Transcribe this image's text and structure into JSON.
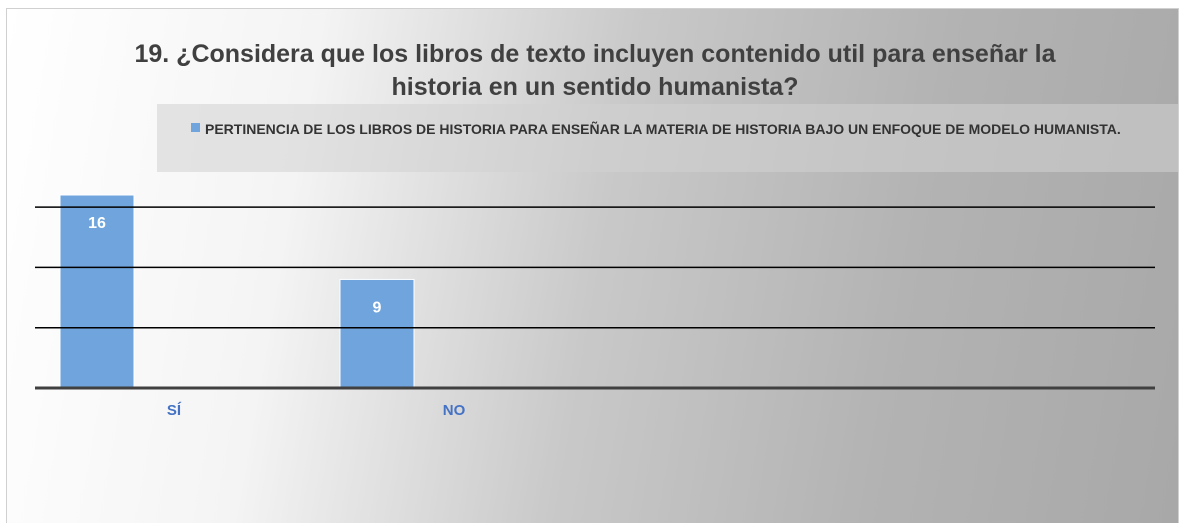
{
  "chart_data": {
    "type": "bar",
    "title": "19. ¿Considera que los libros de texto incluyen contenido util para enseñar la historia en un sentido humanista?",
    "categories": [
      "SÍ",
      "NO"
    ],
    "series": [
      {
        "name": "PERTINENCIA DE LOS LIBROS DE HISTORIA PARA ENSEÑAR LA MATERIA DE HISTORIA BAJO UN ENFOQUE DE MODELO HUMANISTA.",
        "color": "#6fa5dc",
        "values": [
          16,
          9
        ]
      }
    ],
    "ylim": [
      0,
      16
    ],
    "yticks": [
      0,
      5,
      10,
      15
    ],
    "grid": true,
    "legend": "top"
  }
}
